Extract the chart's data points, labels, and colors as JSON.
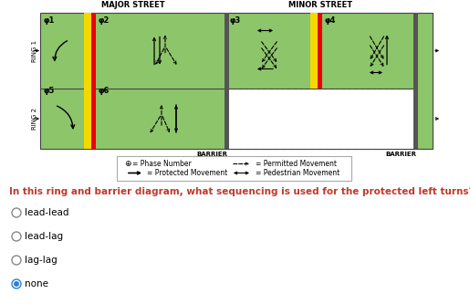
{
  "fig_width": 5.15,
  "fig_height": 3.33,
  "dpi": 100,
  "colors": {
    "green": "#8DC56A",
    "yellow": "#F5D800",
    "red": "#E8000A",
    "barrier": "#555555",
    "outer_dash": "#999999",
    "legend_border": "#aaaaaa",
    "question_color": "#c0392b",
    "radio_blue": "#2980d4"
  },
  "labels": {
    "major_street": "MAJOR STREET",
    "minor_street": "MINOR STREET",
    "ring1": "RING 1",
    "ring2": "RING 2",
    "barrier": "BARRIER",
    "phases": [
      "φ1",
      "φ2",
      "φ3",
      "φ4",
      "φ5",
      "φ6"
    ]
  },
  "question_text": "In this ring and barrier diagram, what sequencing is used for the protected left turns?",
  "options": [
    {
      "label": "lead-lead",
      "selected": false
    },
    {
      "label": "lead-lag",
      "selected": false
    },
    {
      "label": "lag-lag",
      "selected": false
    },
    {
      "label": "none",
      "selected": true
    }
  ]
}
